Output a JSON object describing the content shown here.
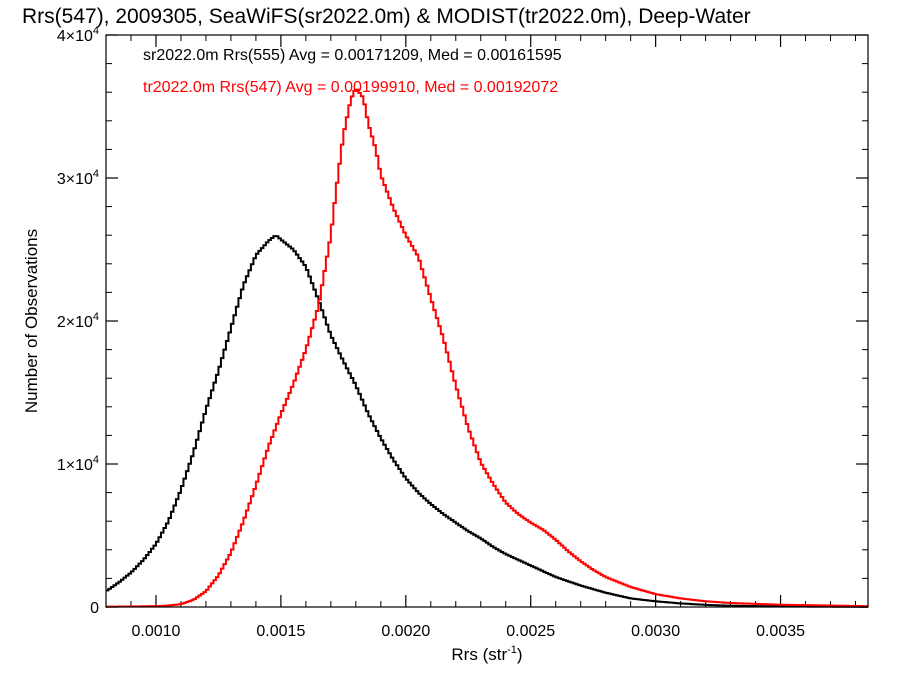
{
  "chart_data": {
    "type": "line",
    "title": "Rrs(547), 2009305, SeaWiFS(sr2022.0m) & MODIST(tr2022.0m), Deep-Water",
    "xlabel_main": "Rrs (str",
    "xlabel_sup": "-1",
    "xlabel_close": ")",
    "ylabel": "Number of Observations",
    "xlim": [
      0.0008,
      0.00385
    ],
    "ylim": [
      0,
      40000
    ],
    "x_ticks": [
      {
        "value": 0.001,
        "label": "0.0010"
      },
      {
        "value": 0.0015,
        "label": "0.0015"
      },
      {
        "value": 0.002,
        "label": "0.0020"
      },
      {
        "value": 0.0025,
        "label": "0.0025"
      },
      {
        "value": 0.003,
        "label": "0.0030"
      },
      {
        "value": 0.0035,
        "label": "0.0035"
      }
    ],
    "y_ticks": [
      {
        "value": 0,
        "base": "0",
        "exp": ""
      },
      {
        "value": 10000,
        "base": "1×10",
        "exp": "4"
      },
      {
        "value": 20000,
        "base": "2×10",
        "exp": "4"
      },
      {
        "value": 30000,
        "base": "3×10",
        "exp": "4"
      },
      {
        "value": 40000,
        "base": "4×10",
        "exp": "4"
      }
    ],
    "series": [
      {
        "legend": "sr2022.0m Rrs(555) Avg = 0.00171209, Med = 0.00161595",
        "color": "#000000",
        "step": "hist",
        "points": [
          [
            0.0008,
            1100
          ],
          [
            0.00085,
            1700
          ],
          [
            0.0009,
            2400
          ],
          [
            0.00095,
            3300
          ],
          [
            0.001,
            4400
          ],
          [
            0.00105,
            6000
          ],
          [
            0.0011,
            8200
          ],
          [
            0.00115,
            10800
          ],
          [
            0.0012,
            13800
          ],
          [
            0.00125,
            16500
          ],
          [
            0.0013,
            19500
          ],
          [
            0.00135,
            22500
          ],
          [
            0.0014,
            24600
          ],
          [
            0.00145,
            25600
          ],
          [
            0.00148,
            26000
          ],
          [
            0.0015,
            25700
          ],
          [
            0.00155,
            25000
          ],
          [
            0.0016,
            23800
          ],
          [
            0.00165,
            21500
          ],
          [
            0.0017,
            19000
          ],
          [
            0.00175,
            17200
          ],
          [
            0.0018,
            15500
          ],
          [
            0.00185,
            13500
          ],
          [
            0.0019,
            11800
          ],
          [
            0.00195,
            10300
          ],
          [
            0.002,
            9000
          ],
          [
            0.00205,
            8000
          ],
          [
            0.0021,
            7200
          ],
          [
            0.00215,
            6500
          ],
          [
            0.0022,
            5900
          ],
          [
            0.00225,
            5300
          ],
          [
            0.0023,
            4800
          ],
          [
            0.00235,
            4200
          ],
          [
            0.0024,
            3700
          ],
          [
            0.00245,
            3300
          ],
          [
            0.0025,
            2900
          ],
          [
            0.00255,
            2500
          ],
          [
            0.0026,
            2100
          ],
          [
            0.00265,
            1800
          ],
          [
            0.0027,
            1500
          ],
          [
            0.00275,
            1250
          ],
          [
            0.0028,
            1000
          ],
          [
            0.00285,
            800
          ],
          [
            0.0029,
            600
          ],
          [
            0.003,
            400
          ],
          [
            0.0031,
            250
          ],
          [
            0.0032,
            150
          ],
          [
            0.0033,
            90
          ],
          [
            0.0035,
            40
          ],
          [
            0.00385,
            10
          ]
        ]
      },
      {
        "legend": "tr2022.0m Rrs(547) Avg = 0.00199910, Med = 0.00192072",
        "color": "#ff0000",
        "step": "hist",
        "points": [
          [
            0.0008,
            20
          ],
          [
            0.0009,
            40
          ],
          [
            0.001,
            60
          ],
          [
            0.00105,
            100
          ],
          [
            0.0011,
            200
          ],
          [
            0.00115,
            500
          ],
          [
            0.0012,
            1100
          ],
          [
            0.00125,
            2200
          ],
          [
            0.0013,
            3800
          ],
          [
            0.00135,
            6000
          ],
          [
            0.0014,
            8500
          ],
          [
            0.00145,
            11200
          ],
          [
            0.0015,
            13500
          ],
          [
            0.00155,
            15600
          ],
          [
            0.0016,
            18000
          ],
          [
            0.00165,
            21000
          ],
          [
            0.0017,
            26000
          ],
          [
            0.00172,
            29000
          ],
          [
            0.00175,
            33000
          ],
          [
            0.00178,
            35500
          ],
          [
            0.0018,
            36300
          ],
          [
            0.00183,
            35600
          ],
          [
            0.00185,
            33800
          ],
          [
            0.00188,
            32000
          ],
          [
            0.0019,
            30200
          ],
          [
            0.00195,
            27900
          ],
          [
            0.002,
            26000
          ],
          [
            0.00205,
            24500
          ],
          [
            0.0021,
            21600
          ],
          [
            0.00215,
            18800
          ],
          [
            0.0022,
            15500
          ],
          [
            0.00225,
            12500
          ],
          [
            0.0023,
            10100
          ],
          [
            0.00235,
            8600
          ],
          [
            0.0024,
            7300
          ],
          [
            0.00245,
            6500
          ],
          [
            0.0025,
            5900
          ],
          [
            0.00255,
            5400
          ],
          [
            0.0026,
            4700
          ],
          [
            0.00265,
            3900
          ],
          [
            0.0027,
            3200
          ],
          [
            0.00275,
            2600
          ],
          [
            0.0028,
            2100
          ],
          [
            0.0029,
            1400
          ],
          [
            0.003,
            900
          ],
          [
            0.0031,
            600
          ],
          [
            0.0032,
            400
          ],
          [
            0.0033,
            280
          ],
          [
            0.0035,
            160
          ],
          [
            0.00385,
            60
          ]
        ]
      }
    ]
  }
}
